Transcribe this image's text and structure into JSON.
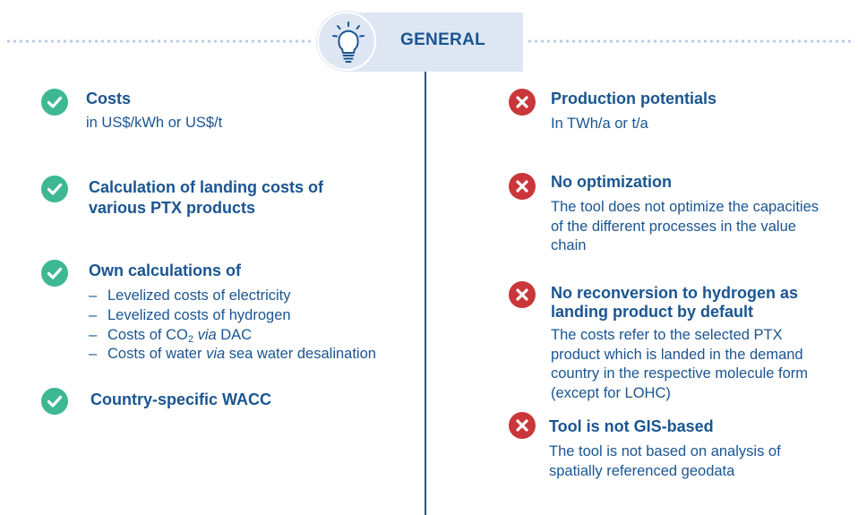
{
  "header": {
    "title": "GENERAL",
    "icon": "lightbulb-icon"
  },
  "colors": {
    "text": "#1a5591",
    "check": "#3db893",
    "cross": "#c9373a",
    "header_bg": "#dde6f2"
  },
  "left": {
    "costs": {
      "title": "Costs",
      "body": "in US$/kWh or US$/t"
    },
    "landing": {
      "title": "Calculation of landing costs of various PTX products"
    },
    "own": {
      "title": "Own calculations of",
      "items": {
        "i1": "Levelized costs of electricity",
        "i2": "Levelized costs of hydrogen",
        "i3_pre": "Costs of CO",
        "i3_sub": "2",
        "i3_via": "via",
        "i3_post": "DAC",
        "i4_pre": "Costs of water",
        "i4_via": "via",
        "i4_post": "sea water desalination"
      }
    },
    "wacc": {
      "title": "Country-specific WACC"
    }
  },
  "right": {
    "production": {
      "title": "Production potentials",
      "body": "In TWh/a or t/a"
    },
    "optimization": {
      "title": "No optimization",
      "body": "The tool does not optimize the capacities of the different processes in the value chain"
    },
    "reconversion": {
      "title": "No reconversion to hydrogen as landing product by default",
      "body": "The costs refer to the selected PTX product which is landed in the demand country in the respective molecule form (except for LOHC)"
    },
    "gis": {
      "title": "Tool is not GIS-based",
      "body": "The tool is not based on analysis of spatially referenced geodata"
    }
  }
}
